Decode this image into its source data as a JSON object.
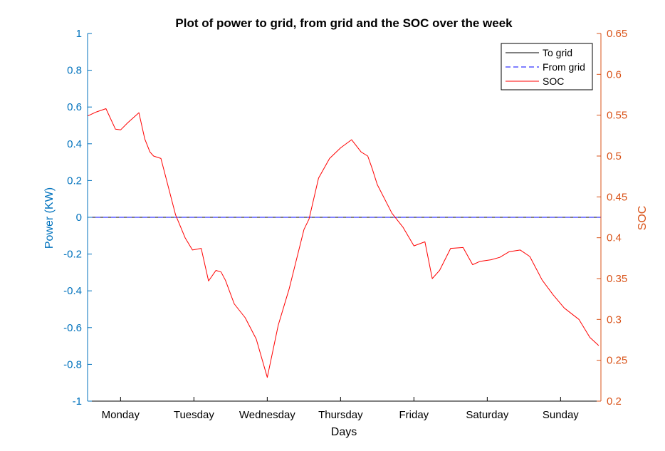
{
  "chart_data": {
    "type": "line",
    "title": "Plot of power to grid, from grid and the SOC over the week",
    "xlabel": "Days",
    "ylabel_left": "Power (KW)",
    "ylabel_right": "SOC",
    "x_tick_labels": [
      "Monday",
      "Tuesday",
      "Wednesday",
      "Thursday",
      "Friday",
      "Saturday",
      "Sunday"
    ],
    "x_range": [
      0,
      7
    ],
    "ylim_left": [
      -1,
      1
    ],
    "ylim_right": [
      0.2,
      0.65
    ],
    "y_ticks_left": [
      "1",
      "0.8",
      "0.6",
      "0.4",
      "0.2",
      "0",
      "-0.2",
      "-0.4",
      "-0.6",
      "-0.8",
      "-1"
    ],
    "y_ticks_right": [
      "0.65",
      "0.6",
      "0.55",
      "0.5",
      "0.45",
      "0.4",
      "0.35",
      "0.3",
      "0.25",
      "0.2"
    ],
    "legend_position": "top-right",
    "grid": false,
    "colors": {
      "left_axis": "#0072BD",
      "right_axis": "#D95319",
      "to_grid": "#000000",
      "from_grid": "#0000FF",
      "soc": "#FF0000"
    },
    "series": [
      {
        "name": "To grid",
        "axis": "left",
        "style": "solid",
        "x": [
          0,
          7
        ],
        "y": [
          0,
          0
        ]
      },
      {
        "name": "From grid",
        "axis": "left",
        "style": "dashed",
        "x": [
          0,
          7
        ],
        "y": [
          0,
          0
        ]
      },
      {
        "name": "SOC",
        "axis": "right",
        "style": "solid",
        "x": [
          0,
          0.12,
          0.25,
          0.38,
          0.45,
          0.55,
          0.7,
          0.78,
          0.85,
          0.9,
          1.0,
          1.05,
          1.2,
          1.33,
          1.43,
          1.55,
          1.65,
          1.75,
          1.82,
          1.88,
          2.0,
          2.15,
          2.3,
          2.45,
          2.6,
          2.75,
          2.95,
          3.02,
          3.15,
          3.3,
          3.45,
          3.6,
          3.73,
          3.82,
          3.88,
          3.95,
          4.15,
          4.3,
          4.45,
          4.6,
          4.7,
          4.8,
          4.95,
          5.12,
          5.25,
          5.35,
          5.5,
          5.62,
          5.75,
          5.9,
          6.03,
          6.2,
          6.35,
          6.5,
          6.7,
          6.85,
          6.97
        ],
        "y": [
          0.549,
          0.554,
          0.558,
          0.533,
          0.532,
          0.541,
          0.553,
          0.521,
          0.505,
          0.5,
          0.497,
          0.48,
          0.428,
          0.4,
          0.385,
          0.387,
          0.347,
          0.36,
          0.358,
          0.348,
          0.319,
          0.302,
          0.276,
          0.229,
          0.293,
          0.338,
          0.41,
          0.423,
          0.473,
          0.497,
          0.51,
          0.52,
          0.505,
          0.5,
          0.485,
          0.465,
          0.43,
          0.413,
          0.39,
          0.395,
          0.35,
          0.36,
          0.387,
          0.388,
          0.367,
          0.371,
          0.373,
          0.376,
          0.383,
          0.385,
          0.377,
          0.348,
          0.33,
          0.314,
          0.3,
          0.278,
          0.268
        ]
      }
    ]
  }
}
